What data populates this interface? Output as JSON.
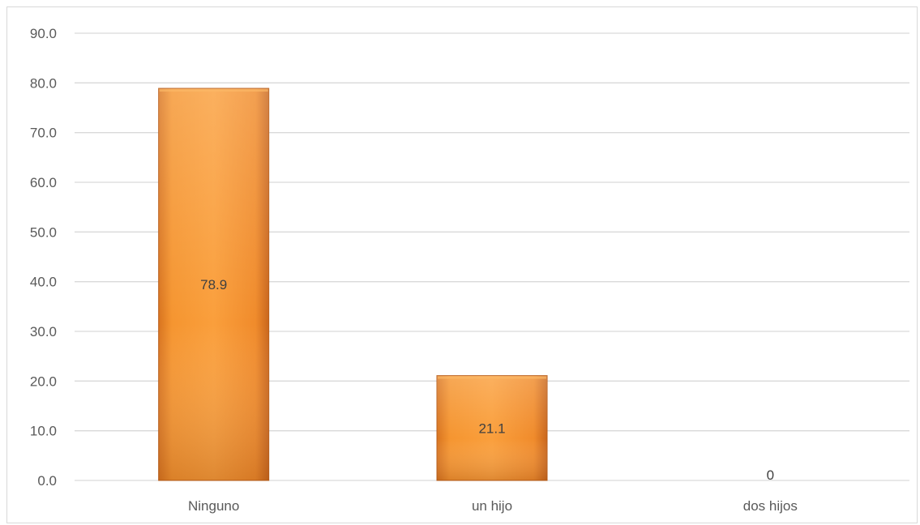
{
  "chart_data": {
    "type": "bar",
    "title": "",
    "xlabel": "",
    "ylabel": "",
    "categories": [
      "Ninguno",
      "un hijo",
      "dos hijos"
    ],
    "values": [
      78.9,
      21.1,
      0
    ],
    "data_labels": [
      "78.9",
      "21.1",
      "0"
    ],
    "ylim": [
      0,
      90
    ],
    "y_ticks": [
      0,
      10,
      20,
      30,
      40,
      50,
      60,
      70,
      80,
      90
    ],
    "y_tick_labels": [
      "0.0",
      "10.0",
      "20.0",
      "30.0",
      "40.0",
      "50.0",
      "60.0",
      "70.0",
      "80.0",
      "90.0"
    ],
    "grid": true,
    "legend": "none",
    "colors": {
      "bar_light": "#f9a03b",
      "bar_mid": "#f0892a",
      "bar_dark": "#c9661c",
      "gridline": "#d9d9d9",
      "axis_text": "#595959"
    }
  }
}
